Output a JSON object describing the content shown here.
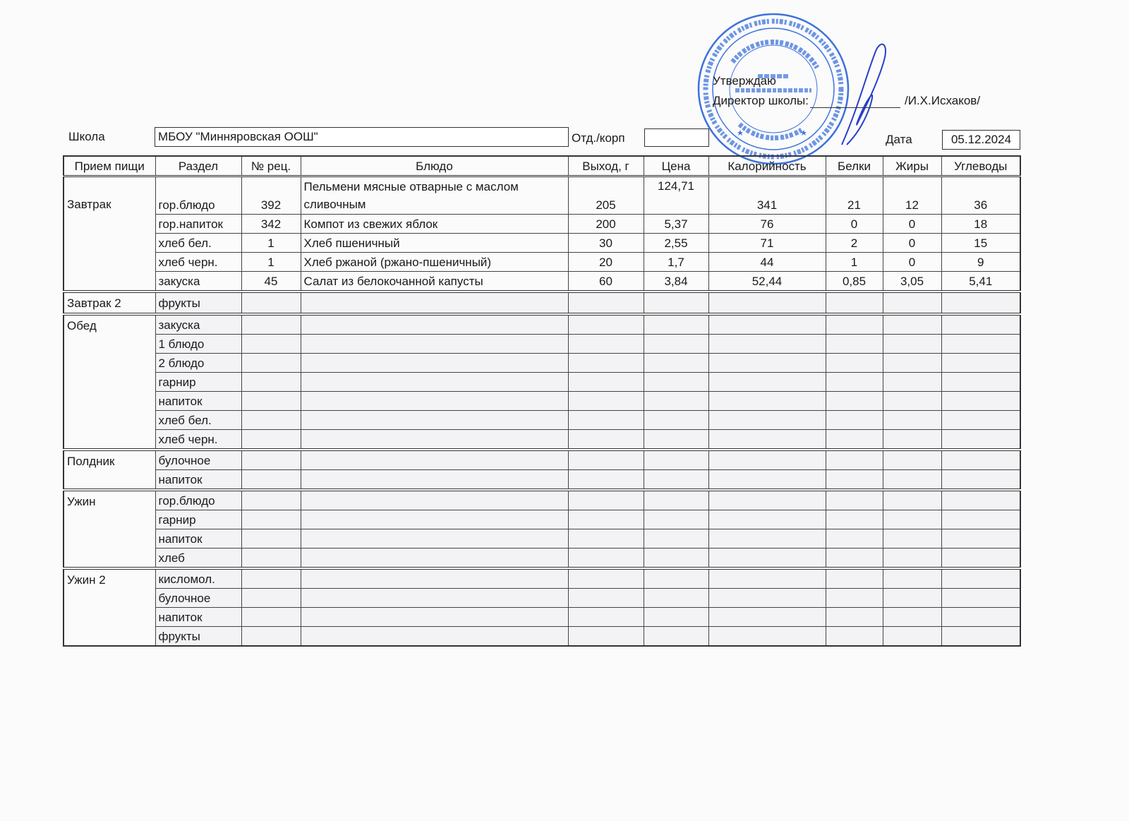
{
  "approval": {
    "approve_label": "Утверждаю",
    "director_label": "Директор школы:",
    "director_name": "/И.Х.Исхаков/"
  },
  "stamp": {
    "outer_text": "МУНИЦИПАЛЬНОЕ БЮДЖЕТНОЕ ОБЩЕОБРАЗОВАТЕЛЬНОЕ УЧРЕЖДЕНИЕ «МИННЯРОВСКАЯ ОСНОВНАЯ ОБЩЕОБРАЗОВАТЕЛЬНАЯ ШКОЛА» АКТАНЫШСКОГО МУНИЦИПАЛЬНОГО РАЙОНА РЕСПУБЛИКИ ТАТАРСТАН",
    "ogrn": "ОГРН 1031635202873",
    "inn": "ИНН 1604005878",
    "center_line1": "МБОУ",
    "center_line2": "«Минняровская ООШ»",
    "color": "#1e5bd8"
  },
  "header": {
    "school_label": "Школа",
    "school_value": "МБОУ \"Минняровская ООШ\"",
    "dept_label": "Отд./корп",
    "dept_value": "",
    "date_label": "Дата",
    "date_value": "05.12.2024"
  },
  "table": {
    "columns": [
      "Прием пищи",
      "Раздел",
      "№ рец.",
      "Блюдо",
      "Выход, г",
      "Цена",
      "Калорийность",
      "Белки",
      "Жиры",
      "Углеводы"
    ],
    "groups": [
      {
        "meal": "Завтрак",
        "rows": [
          {
            "section": "гор.блюдо",
            "recipe": "392",
            "dish": "Пельмени мясные отварные с маслом сливочным",
            "yield": "205",
            "price": "124,71",
            "kcal": "341",
            "protein": "21",
            "fat": "12",
            "carbs": "36"
          },
          {
            "section": "гор.напиток",
            "recipe": "342",
            "dish": "Компот из свежих яблок",
            "yield": "200",
            "price": "5,37",
            "kcal": "76",
            "protein": "0",
            "fat": "0",
            "carbs": "18"
          },
          {
            "section": "хлеб бел.",
            "recipe": "1",
            "dish": "Хлеб пшеничный",
            "yield": "30",
            "price": "2,55",
            "kcal": "71",
            "protein": "2",
            "fat": "0",
            "carbs": "15"
          },
          {
            "section": "хлеб черн.",
            "recipe": "1",
            "dish": "Хлеб ржаной (ржано-пшеничный)",
            "yield": "20",
            "price": "1,7",
            "kcal": "44",
            "protein": "1",
            "fat": "0",
            "carbs": "9"
          },
          {
            "section": "закуска",
            "recipe": "45",
            "dish": "Салат из белокочанной капусты",
            "yield": "60",
            "price": "3,84",
            "kcal": "52,44",
            "protein": "0,85",
            "fat": "3,05",
            "carbs": "5,41"
          }
        ]
      },
      {
        "meal": "Завтрак 2",
        "rows": [
          {
            "section": "фрукты"
          }
        ]
      },
      {
        "meal": "Обед",
        "rows": [
          {
            "section": "закуска"
          },
          {
            "section": "1 блюдо"
          },
          {
            "section": "2 блюдо"
          },
          {
            "section": "гарнир"
          },
          {
            "section": "напиток"
          },
          {
            "section": "хлеб бел."
          },
          {
            "section": "хлеб черн."
          }
        ]
      },
      {
        "meal": "Полдник",
        "rows": [
          {
            "section": "булочное"
          },
          {
            "section": "напиток"
          }
        ]
      },
      {
        "meal": "Ужин",
        "rows": [
          {
            "section": "гор.блюдо"
          },
          {
            "section": "гарнир"
          },
          {
            "section": "напиток"
          },
          {
            "section": "хлеб"
          }
        ]
      },
      {
        "meal": "Ужин 2",
        "rows": [
          {
            "section": "кисломол."
          },
          {
            "section": "булочное"
          },
          {
            "section": "напиток"
          },
          {
            "section": "фрукты"
          }
        ]
      }
    ]
  }
}
